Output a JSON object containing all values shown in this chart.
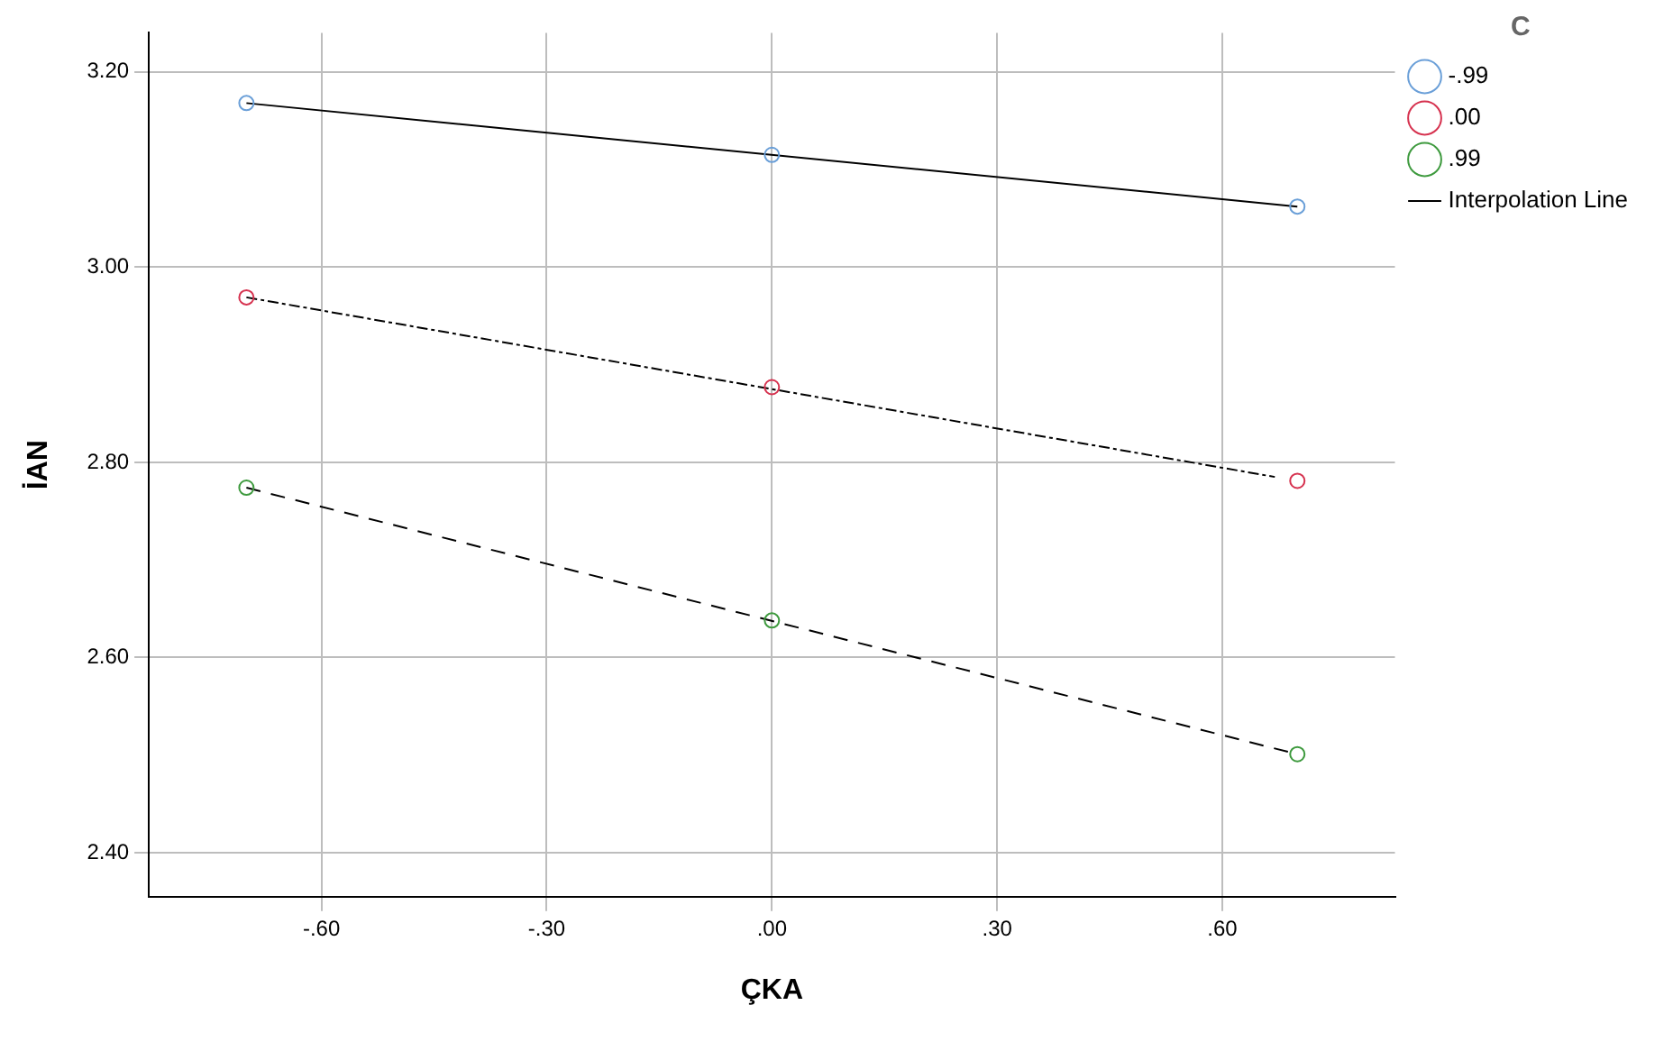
{
  "chart_data": {
    "type": "scatter",
    "xlabel": "ÇKA",
    "ylabel": "İAN",
    "legend_title": "C",
    "xlim": [
      -0.83,
      0.83
    ],
    "xticks": [
      {
        "value": -0.6,
        "label": "-.60"
      },
      {
        "value": -0.3,
        "label": "-.30"
      },
      {
        "value": 0,
        "label": ".00"
      },
      {
        "value": 0.3,
        "label": ".30"
      },
      {
        "value": 0.6,
        "label": ".60"
      }
    ],
    "ylim": [
      2.355,
      3.24
    ],
    "yticks": [
      {
        "value": 2.4,
        "label": "2.40"
      },
      {
        "value": 2.6,
        "label": "2.60"
      },
      {
        "value": 2.8,
        "label": "2.80"
      },
      {
        "value": 3.0,
        "label": "3.00"
      },
      {
        "value": 3.2,
        "label": "3.20"
      }
    ],
    "grid": true,
    "legend": "top right",
    "marker": "circle",
    "series": [
      {
        "name": "-.99",
        "color": "#6a9fd8",
        "x": [
          -0.7,
          0,
          0.7
        ],
        "values": [
          3.168,
          3.115,
          3.062
        ]
      },
      {
        "name": ".00",
        "color": "#d6324f",
        "x": [
          -0.7,
          0,
          0.7
        ],
        "values": [
          2.969,
          2.877,
          2.781
        ]
      },
      {
        "name": ".99",
        "color": "#3e9a3e",
        "x": [
          -0.7,
          0,
          0.7
        ],
        "values": [
          2.774,
          2.638,
          2.501
        ]
      },
      {
        "name": "Interpolation Line",
        "type": "line",
        "marker": "none",
        "color": "#000000",
        "line_style": "solid",
        "x": [
          -0.7,
          0.7
        ],
        "values": [
          3.168,
          3.062
        ]
      },
      {
        "type": "line",
        "marker": "none",
        "color": "#000000",
        "line_style": "dotted",
        "x": [
          -0.7,
          0.67
        ],
        "values": [
          2.969,
          2.785
        ]
      },
      {
        "type": "line",
        "marker": "none",
        "color": "#000000",
        "line_style": "dashed",
        "x": [
          -0.7,
          0.7
        ],
        "values": [
          2.774,
          2.501
        ]
      }
    ]
  }
}
